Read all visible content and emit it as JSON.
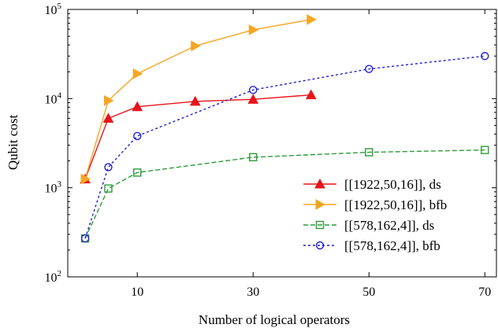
{
  "chart_data": {
    "type": "line",
    "xlabel": "Number of logical operators",
    "ylabel": "Qubit cost",
    "x_ticks": [
      10,
      30,
      50,
      70
    ],
    "x_tick_labels": [
      "10",
      "30",
      "50",
      "70"
    ],
    "xlim": [
      -2,
      72
    ],
    "y_scale": "log",
    "ylim": [
      100,
      100000
    ],
    "y_ticks": [
      100,
      1000,
      10000,
      100000
    ],
    "y_tick_labels": [
      {
        "base": "10",
        "exp": "2"
      },
      {
        "base": "10",
        "exp": "3"
      },
      {
        "base": "10",
        "exp": "4"
      },
      {
        "base": "10",
        "exp": "5"
      }
    ],
    "grid": false,
    "legend_position": "lower-right",
    "series": [
      {
        "name": "[[1922,50,16]], ds",
        "color": "#e8141c",
        "line": "solid",
        "marker": "triangle-up",
        "x": [
          1,
          5,
          10,
          20,
          30,
          40
        ],
        "y": [
          1250,
          6000,
          8100,
          9300,
          9800,
          11000
        ]
      },
      {
        "name": "[[1922,50,16]], bfb",
        "color": "#f5a623",
        "line": "solid",
        "marker": "triangle-right",
        "x": [
          1,
          5,
          10,
          20,
          30,
          40
        ],
        "y": [
          1250,
          9500,
          19000,
          39000,
          59000,
          77000
        ]
      },
      {
        "name": "[[578,162,4]], ds",
        "color": "#2e9c3a",
        "line": "dashed",
        "marker": "square",
        "x": [
          1,
          5,
          10,
          30,
          50,
          70
        ],
        "y": [
          270,
          980,
          1480,
          2200,
          2500,
          2650
        ]
      },
      {
        "name": "[[578,162,4]], bfb",
        "color": "#1f1fd6",
        "line": "dotted",
        "marker": "circle",
        "x": [
          1,
          5,
          10,
          30,
          50,
          70
        ],
        "y": [
          270,
          1700,
          3800,
          12500,
          21500,
          30000
        ]
      }
    ]
  }
}
